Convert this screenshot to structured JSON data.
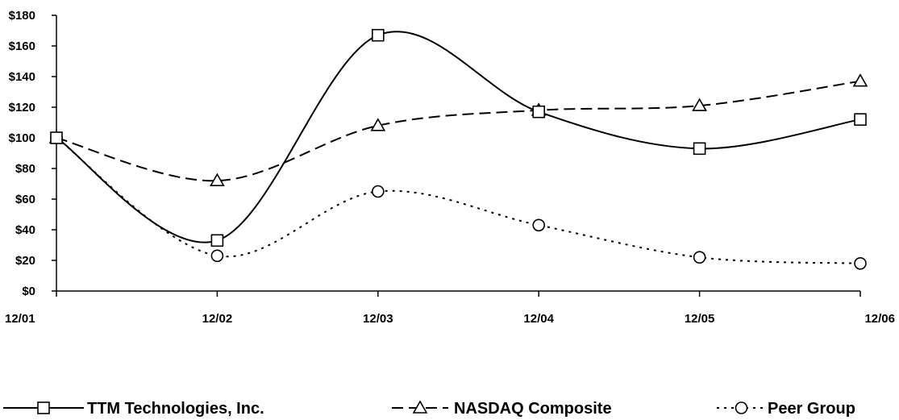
{
  "chart_data": {
    "type": "line",
    "categories": [
      "12/01",
      "12/02",
      "12/03",
      "12/04",
      "12/05",
      "12/06"
    ],
    "ylim": [
      0,
      180
    ],
    "yticks": [
      0,
      20,
      40,
      60,
      80,
      100,
      120,
      140,
      160,
      180
    ],
    "ytick_labels": [
      "$0",
      "$20",
      "$40",
      "$60",
      "$80",
      "$100",
      "$120",
      "$140",
      "$160",
      "$180"
    ],
    "grid": false,
    "legend_position": "bottom",
    "series": [
      {
        "name": "TTM Technologies, Inc.",
        "values": [
          100,
          33,
          167,
          117,
          93,
          112
        ],
        "marker": "square",
        "dash": "solid",
        "color": "#000000"
      },
      {
        "name": "NASDAQ Composite",
        "values": [
          100,
          72,
          108,
          118,
          121,
          137
        ],
        "marker": "triangle",
        "dash": "dashed",
        "color": "#000000"
      },
      {
        "name": "Peer Group",
        "values": [
          100,
          23,
          65,
          43,
          22,
          18
        ],
        "marker": "circle",
        "dash": "dotted",
        "color": "#000000"
      }
    ]
  }
}
